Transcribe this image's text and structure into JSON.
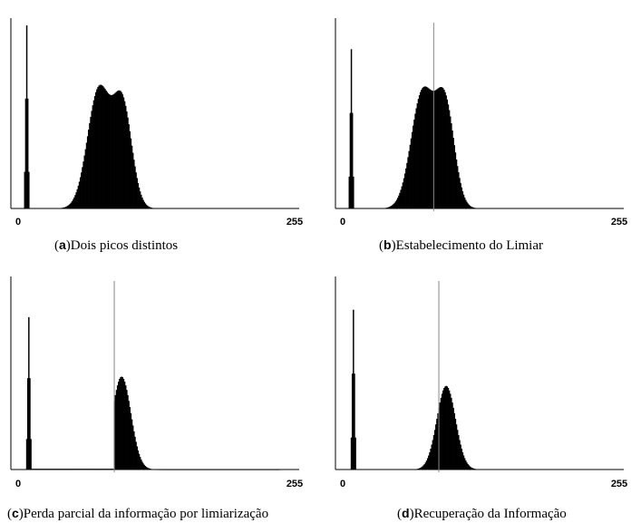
{
  "chart_data": [
    {
      "type": "area",
      "panel": "a",
      "caption": "Dois picos distintos",
      "x_range": [
        0,
        255
      ],
      "x_ticks": [
        "0",
        "255"
      ],
      "ylim": [
        0,
        1
      ],
      "spike": {
        "center": 10,
        "height": 1.0,
        "half_width": 2.5
      },
      "components": [
        {
          "mu": 80,
          "sigma": 11,
          "amp": 0.65
        },
        {
          "mu": 103,
          "sigma": 9,
          "amp": 0.55
        }
      ],
      "threshold": null
    },
    {
      "type": "area",
      "panel": "b",
      "caption": "Estabelecimento do Limiar",
      "x_range": [
        0,
        255
      ],
      "x_ticks": [
        "0",
        "255"
      ],
      "ylim": [
        0,
        1
      ],
      "spike": {
        "center": 10,
        "height": 0.87,
        "half_width": 2.5
      },
      "components": [
        {
          "mu": 79,
          "sigma": 11,
          "amp": 0.63
        },
        {
          "mu": 101,
          "sigma": 9,
          "amp": 0.55
        }
      ],
      "threshold": 90
    },
    {
      "type": "area",
      "panel": "c",
      "caption": "Perda parcial da informação por limiarização",
      "x_range": [
        0,
        255
      ],
      "x_ticks": [
        "0",
        "255"
      ],
      "ylim": [
        0,
        1
      ],
      "spike": {
        "center": 12,
        "height": 0.82,
        "half_width": 2.5
      },
      "components": [
        {
          "mu": 102,
          "sigma": 9,
          "amp": 0.5
        }
      ],
      "cutoff": 95,
      "baseline_from": 15,
      "threshold": 95
    },
    {
      "type": "area",
      "panel": "d",
      "caption": "Recuperação da Informação",
      "x_range": [
        0,
        255
      ],
      "x_ticks": [
        "0",
        "255"
      ],
      "ylim": [
        0,
        1
      ],
      "spike": {
        "center": 12,
        "height": 0.86,
        "half_width": 2.5
      },
      "components": [
        {
          "mu": 102,
          "sigma": 9,
          "amp": 0.45
        }
      ],
      "threshold": 95
    }
  ]
}
